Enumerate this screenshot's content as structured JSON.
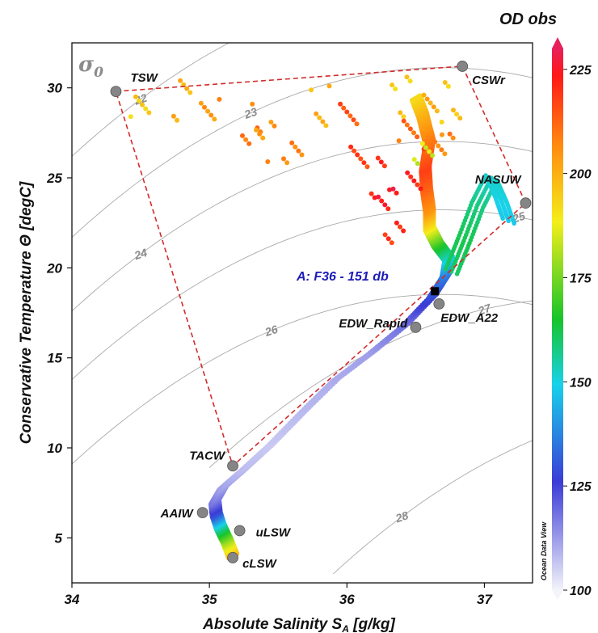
{
  "chart_data": {
    "type": "scatter",
    "xlabel_main": "Absolute Salinity S",
    "xlabel_sub": "A",
    "xlabel_unit": " [g/kg]",
    "ylabel": "Conservative Temperature Θ [degC]",
    "xlim": [
      34,
      37.35
    ],
    "ylim": [
      2.5,
      32.5
    ],
    "x_ticks": [
      34,
      35,
      36,
      37
    ],
    "y_ticks": [
      5,
      10,
      15,
      20,
      25,
      30
    ],
    "sigma_label": "σ",
    "sigma_sub": "0",
    "colorbar": {
      "title": "OD obs",
      "range": [
        100,
        230
      ],
      "ticks": [
        100,
        125,
        150,
        175,
        200,
        225
      ]
    },
    "water_masses": [
      {
        "name": "TSW",
        "S": 34.32,
        "T": 29.8
      },
      {
        "name": "CSWr",
        "S": 36.84,
        "T": 31.2
      },
      {
        "name": "NASUW",
        "S": 37.3,
        "T": 23.6
      },
      {
        "name": "EDW_A22",
        "S": 36.67,
        "T": 18.0
      },
      {
        "name": "EDW_Rapid",
        "S": 36.5,
        "T": 16.7
      },
      {
        "name": "TACW",
        "S": 35.17,
        "T": 9.0
      },
      {
        "name": "AAIW",
        "S": 34.95,
        "T": 6.4
      },
      {
        "name": "uLSW",
        "S": 35.22,
        "T": 5.4
      },
      {
        "name": "cLSW",
        "S": 35.17,
        "T": 3.9
      }
    ],
    "mixing_polygon": [
      "TSW",
      "CSWr",
      "NASUW",
      "TACW"
    ],
    "isopycnals": [
      {
        "label": "22",
        "S0": 34.0,
        "T0": 26.2,
        "at": 34.5
      },
      {
        "label": "23",
        "S0": 34.0,
        "T0": 21.7,
        "at": 35.3
      },
      {
        "label": "24",
        "S0": 34.0,
        "T0": 17.6,
        "at": 34.5
      },
      {
        "label": "25",
        "S0": 34.0,
        "T0": 13.8,
        "at": 37.25
      },
      {
        "label": "26",
        "S0": 34.0,
        "T0": 9.1,
        "at": 35.45
      },
      {
        "label": "27",
        "S0": 35.0,
        "T0": 8.9,
        "at": 37.0
      },
      {
        "label": "28",
        "S0": 35.9,
        "T0": 3.0,
        "at": 36.4
      }
    ],
    "highlight": {
      "label": "A: F36 - 151 db",
      "S": 36.64,
      "T": 18.7
    },
    "deep_profile": [
      {
        "S": 35.17,
        "T": 4.0,
        "v": 200
      },
      {
        "S": 35.13,
        "T": 4.8,
        "v": 180
      },
      {
        "S": 35.08,
        "T": 5.6,
        "v": 155
      },
      {
        "S": 35.05,
        "T": 6.3,
        "v": 130
      },
      {
        "S": 35.04,
        "T": 7.0,
        "v": 118
      },
      {
        "S": 35.1,
        "T": 7.8,
        "v": 112
      },
      {
        "S": 35.25,
        "T": 8.8,
        "v": 108
      },
      {
        "S": 35.45,
        "T": 10.2,
        "v": 106
      },
      {
        "S": 35.68,
        "T": 12.0,
        "v": 108
      },
      {
        "S": 35.92,
        "T": 13.8,
        "v": 110
      },
      {
        "S": 36.18,
        "T": 15.3,
        "v": 112
      },
      {
        "S": 36.42,
        "T": 16.8,
        "v": 118
      },
      {
        "S": 36.62,
        "T": 18.4,
        "v": 128
      },
      {
        "S": 36.72,
        "T": 19.6,
        "v": 136
      },
      {
        "S": 36.74,
        "T": 20.5,
        "v": 150
      },
      {
        "S": 36.66,
        "T": 21.3,
        "v": 168
      },
      {
        "S": 36.6,
        "T": 22.2,
        "v": 190
      },
      {
        "S": 36.6,
        "T": 23.2,
        "v": 205
      },
      {
        "S": 36.58,
        "T": 24.3,
        "v": 212
      },
      {
        "S": 36.57,
        "T": 25.5,
        "v": 218
      },
      {
        "S": 36.6,
        "T": 27.0,
        "v": 210
      },
      {
        "S": 36.55,
        "T": 28.5,
        "v": 200
      },
      {
        "S": 36.5,
        "T": 29.5,
        "v": 192
      }
    ],
    "shelf_branches": [
      {
        "S": 36.76,
        "T": 19.8,
        "v": 160
      },
      {
        "S": 36.85,
        "T": 21.5,
        "v": 162
      },
      {
        "S": 36.95,
        "T": 23.5,
        "v": 158
      },
      {
        "S": 37.05,
        "T": 25.0,
        "v": 152
      },
      {
        "S": 37.12,
        "T": 23.8,
        "v": 150
      },
      {
        "S": 37.18,
        "T": 22.5,
        "v": 148
      }
    ],
    "surface_cloud": [
      {
        "S": 34.5,
        "T": 29.5,
        "v": 195
      },
      {
        "S": 34.8,
        "T": 29.3,
        "v": 200
      },
      {
        "S": 35.0,
        "T": 28.7,
        "v": 205
      },
      {
        "S": 35.3,
        "T": 28.0,
        "v": 210
      },
      {
        "S": 35.4,
        "T": 27.0,
        "v": 205
      },
      {
        "S": 35.6,
        "T": 26.5,
        "v": 208
      },
      {
        "S": 35.8,
        "T": 29.0,
        "v": 200
      },
      {
        "S": 36.0,
        "T": 28.0,
        "v": 215
      },
      {
        "S": 36.1,
        "T": 26.5,
        "v": 218
      },
      {
        "S": 36.25,
        "T": 25.0,
        "v": 222
      },
      {
        "S": 36.3,
        "T": 23.5,
        "v": 225
      },
      {
        "S": 36.35,
        "T": 22.5,
        "v": 220
      },
      {
        "S": 36.4,
        "T": 29.5,
        "v": 195
      },
      {
        "S": 36.45,
        "T": 27.5,
        "v": 212
      },
      {
        "S": 36.5,
        "T": 25.5,
        "v": 222
      },
      {
        "S": 36.62,
        "T": 28.5,
        "v": 202
      },
      {
        "S": 36.7,
        "T": 27.0,
        "v": 208
      },
      {
        "S": 36.75,
        "T": 29.2,
        "v": 196
      },
      {
        "S": 36.55,
        "T": 25.8,
        "v": 185
      }
    ]
  }
}
